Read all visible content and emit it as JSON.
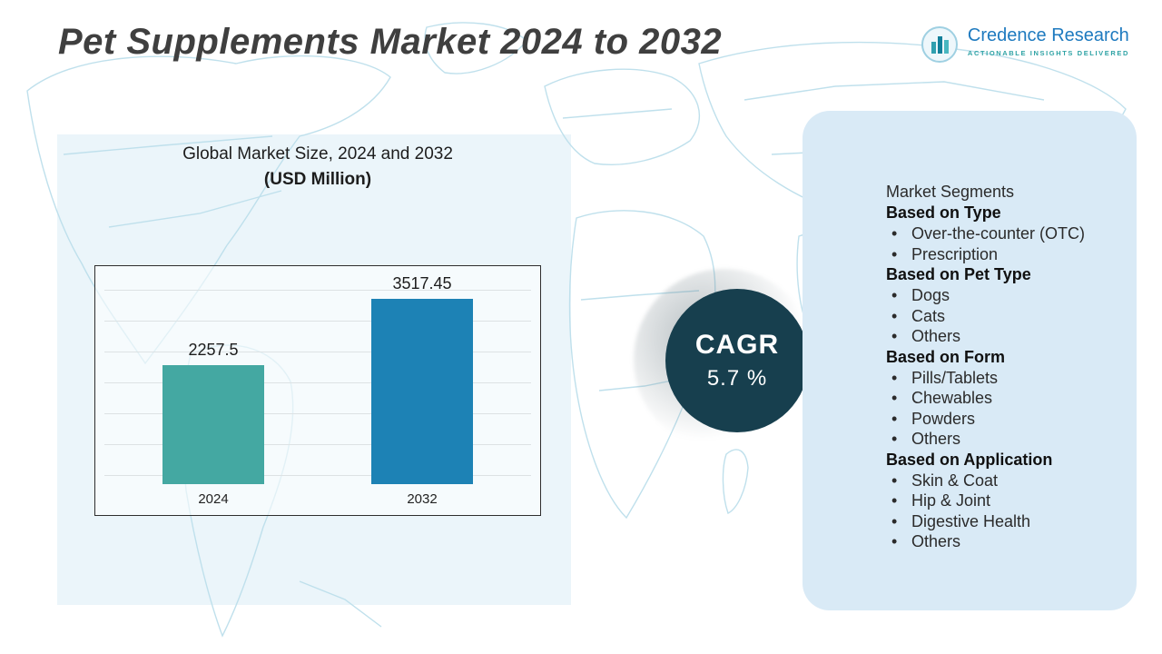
{
  "header": {
    "title": "Pet Supplements Market 2024 to 2032",
    "logo": {
      "name": "Credence Research",
      "tagline": "ACTIONABLE INSIGHTS DELIVERED"
    }
  },
  "chart": {
    "title_line1": "Global Market Size, 2024 and 2032",
    "title_line2": "(USD Million)"
  },
  "chart_data": {
    "type": "bar",
    "categories": [
      "2024",
      "2032"
    ],
    "values": [
      2257.5,
      3517.45
    ],
    "title": "Global Market Size, 2024 and 2032 (USD Million)",
    "xlabel": "",
    "ylabel": "",
    "ylim": [
      0,
      4000
    ],
    "grid": true,
    "legend": "none",
    "bar_colors": [
      "#44a8a2",
      "#1d82b5"
    ]
  },
  "cagr": {
    "label": "CAGR",
    "value": "5.7 %"
  },
  "segments": {
    "title": "Market Segments",
    "groups": [
      {
        "heading": "Based on Type",
        "items": [
          "Over-the-counter (OTC)",
          "Prescription"
        ]
      },
      {
        "heading": "Based on Pet Type",
        "items": [
          "Dogs",
          "Cats",
          "Others"
        ]
      },
      {
        "heading": "Based on Form",
        "items": [
          "Pills/Tablets",
          "Chewables",
          "Powders",
          "Others"
        ]
      },
      {
        "heading": "Based on Application",
        "items": [
          "Skin & Coat",
          "Hip & Joint",
          "Digestive Health",
          "Others"
        ]
      }
    ]
  },
  "colors": {
    "accent_teal": "#44a8a2",
    "accent_blue": "#1d82b5",
    "cagr_circle": "#173f4e",
    "panel_bg": "#d9eaf6",
    "map_line": "#bfe0ec"
  }
}
